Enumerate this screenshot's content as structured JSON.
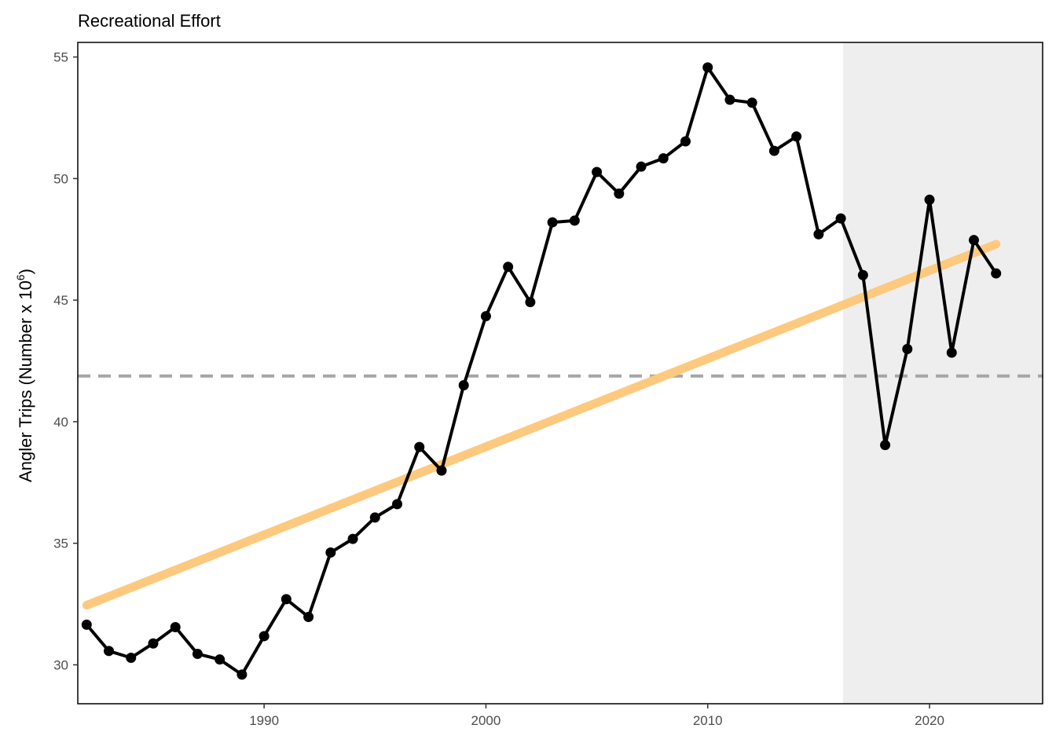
{
  "chart_data": {
    "type": "line",
    "title": "Recreational Effort",
    "xlabel": "",
    "ylabel": "Angler Trips (Number x 10",
    "ylabel_superscript": "6",
    "ylabel_suffix": ")",
    "xlim": [
      1981.6,
      2025.1
    ],
    "ylim": [
      28.4,
      55.6
    ],
    "x_ticks": [
      1990,
      2000,
      2010,
      2020
    ],
    "y_ticks": [
      30,
      35,
      40,
      45,
      50,
      55
    ],
    "grid": false,
    "legend": "none",
    "series": [
      {
        "x": [
          1982,
          1983,
          1984,
          1985,
          1986,
          1987,
          1988,
          1989,
          1990,
          1991,
          1992,
          1993,
          1994,
          1995,
          1996,
          1997,
          1998,
          1999,
          2000,
          2001,
          2002,
          2003,
          2004,
          2005,
          2006,
          2007,
          2008,
          2009,
          2010,
          2011,
          2012,
          2013,
          2014,
          2015,
          2016,
          2017,
          2018,
          2019,
          2020,
          2021,
          2022,
          2023
        ],
        "values": [
          31.65,
          30.57,
          30.29,
          30.88,
          31.55,
          30.45,
          30.22,
          29.6,
          31.18,
          32.7,
          31.97,
          34.62,
          35.18,
          36.06,
          36.61,
          38.96,
          37.99,
          41.5,
          44.34,
          46.37,
          44.92,
          48.2,
          48.27,
          50.27,
          49.38,
          50.49,
          50.83,
          51.53,
          54.57,
          53.24,
          53.12,
          51.14,
          51.73,
          47.71,
          48.36,
          46.03,
          39.04,
          42.99,
          49.13,
          42.84,
          47.47,
          46.1
        ],
        "color": "#000000"
      }
    ],
    "trend_line": {
      "x": [
        1982,
        2023
      ],
      "values": [
        32.45,
        47.3
      ],
      "color": "#fdc97e"
    },
    "mean_line": {
      "value": 41.88,
      "color": "#a6a6a6",
      "style": "dashed"
    },
    "shaded_region": {
      "x_start": 2016.1,
      "x_end": 2025.1,
      "color": "#eeeeee"
    }
  }
}
